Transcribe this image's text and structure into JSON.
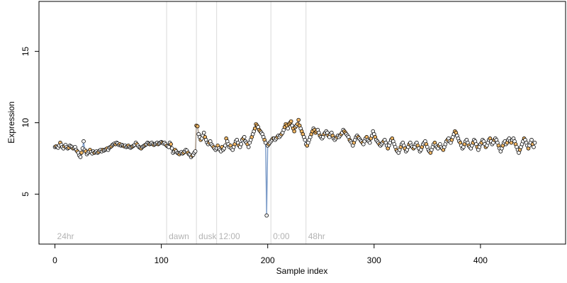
{
  "chart_data": {
    "type": "scatter",
    "title": "",
    "xlabel": "Sample index",
    "ylabel": "Expression",
    "xlim": [
      -15,
      480
    ],
    "ylim": [
      1.5,
      18.5
    ],
    "x_ticks": [
      0,
      100,
      200,
      300,
      400
    ],
    "y_ticks": [
      5,
      10,
      15
    ],
    "grid": false,
    "legend": null,
    "colors": {
      "point_fill_default": "#ffffff",
      "point_fill_highlight": "#f5b967",
      "point_stroke": "#000000",
      "line_primary": "#7b9bc8",
      "line_secondary": "#f0a040",
      "divider": "#d9d9d9",
      "phase_label": "#b3b3b3"
    },
    "phase_dividers": [
      {
        "x": 105,
        "label": "dawn"
      },
      {
        "x": 133,
        "label": "dusk"
      },
      {
        "x": 152,
        "label": "12:00"
      },
      {
        "x": 203,
        "label": "0:00"
      },
      {
        "x": 236,
        "label": "48hr"
      }
    ],
    "start_label": "24hr",
    "series": [
      {
        "values": [
          8.3,
          8.35,
          8.3,
          8.25,
          8.4,
          8.6,
          8.45,
          8.3,
          8.2,
          8.35,
          8.45,
          8.3,
          8.2,
          8.25,
          8.4,
          8.35,
          8.3,
          8.2,
          8.25,
          8.3,
          8.1,
          8.0,
          7.9,
          7.7,
          7.6,
          7.9,
          8.2,
          8.7,
          8.1,
          8.0,
          7.8,
          7.9,
          8.0,
          8.1,
          7.95,
          7.85,
          8.0,
          7.9,
          7.95,
          8.0,
          7.9,
          7.95,
          8.05,
          8.1,
          8.0,
          8.1,
          8.05,
          8.1,
          8.15,
          8.2,
          8.1,
          8.25,
          8.3,
          8.35,
          8.45,
          8.5,
          8.55,
          8.5,
          8.6,
          8.55,
          8.45,
          8.5,
          8.4,
          8.45,
          8.4,
          8.35,
          8.4,
          8.3,
          8.35,
          8.4,
          8.3,
          8.25,
          8.3,
          8.35,
          8.4,
          8.45,
          8.6,
          8.5,
          8.4,
          8.3,
          8.25,
          8.2,
          8.3,
          8.35,
          8.4,
          8.45,
          8.5,
          8.6,
          8.55,
          8.5,
          8.55,
          8.6,
          8.5,
          8.45,
          8.5,
          8.55,
          8.6,
          8.5,
          8.55,
          8.6,
          8.65,
          8.6,
          8.55,
          8.6,
          8.5,
          8.4,
          8.35,
          8.3,
          8.6,
          8.5,
          8.2,
          7.9,
          8.0,
          8.1,
          8.0,
          7.9,
          7.85,
          7.8,
          7.9,
          7.95,
          7.85,
          7.9,
          8.0,
          8.1,
          8.05,
          7.9,
          7.8,
          7.75,
          7.6,
          7.7,
          7.75,
          7.9,
          8.0,
          9.8,
          9.75,
          9.2,
          9.0,
          8.8,
          8.9,
          9.1,
          9.3,
          9.0,
          8.8,
          8.6,
          8.5,
          8.6,
          8.7,
          8.5,
          8.4,
          8.3,
          8.2,
          8.1,
          8.2,
          8.4,
          8.2,
          8.1,
          8.0,
          8.3,
          8.1,
          8.2,
          8.4,
          8.9,
          8.7,
          8.5,
          8.3,
          8.4,
          8.2,
          8.1,
          8.3,
          8.5,
          8.7,
          8.8,
          8.6,
          8.4,
          8.3,
          8.5,
          8.8,
          8.9,
          9.0,
          8.7,
          8.6,
          8.5,
          8.3,
          8.6,
          8.8,
          9.0,
          9.2,
          9.4,
          9.6,
          9.9,
          9.8,
          9.7,
          9.5,
          9.4,
          9.3,
          9.2,
          9.0,
          8.8,
          8.6,
          3.5,
          8.4,
          8.5,
          8.6,
          8.7,
          8.8,
          8.9,
          8.9,
          8.8,
          8.9,
          9.0,
          9.1,
          9.0,
          9.1,
          9.2,
          9.3,
          9.5,
          9.7,
          9.9,
          9.8,
          9.6,
          9.9,
          10.0,
          10.1,
          9.8,
          9.6,
          9.4,
          9.7,
          9.8,
          9.9,
          10.2,
          9.8,
          9.6,
          9.4,
          9.2,
          9.0,
          8.8,
          8.5,
          8.4,
          8.6,
          8.8,
          9.0,
          9.2,
          9.4,
          9.6,
          9.5,
          9.3,
          9.4,
          9.5,
          9.3,
          9.1,
          9.0,
          8.9,
          9.0,
          9.2,
          9.3,
          9.4,
          9.3,
          9.1,
          9.0,
          9.2,
          9.3,
          9.1,
          8.9,
          8.8,
          8.9,
          9.0,
          9.1,
          9.0,
          9.1,
          9.2,
          9.3,
          9.5,
          9.4,
          9.3,
          9.2,
          9.1,
          9.0,
          8.8,
          8.7,
          8.6,
          8.4,
          8.6,
          8.8,
          9.0,
          9.1,
          9.0,
          8.9,
          8.8,
          8.7,
          8.6,
          8.5,
          8.7,
          8.9,
          9.0,
          8.8,
          8.7,
          8.6,
          8.9,
          9.1,
          9.4,
          9.2,
          9.0,
          8.8,
          8.7,
          8.6,
          8.5,
          8.4,
          8.5,
          8.6,
          8.7,
          8.8,
          8.6,
          8.4,
          8.2,
          8.4,
          8.6,
          8.8,
          8.9,
          8.7,
          8.5,
          8.3,
          8.1,
          8.0,
          7.9,
          8.1,
          8.3,
          8.5,
          8.6,
          8.4,
          8.2,
          8.0,
          8.1,
          8.3,
          8.5,
          8.6,
          8.4,
          8.3,
          8.2,
          8.3,
          8.5,
          8.6,
          8.4,
          8.2,
          8.0,
          8.1,
          8.3,
          8.5,
          8.6,
          8.7,
          8.5,
          8.3,
          8.1,
          8.0,
          7.9,
          8.1,
          8.3,
          8.5,
          8.6,
          8.4,
          8.3,
          8.2,
          8.4,
          8.5,
          8.3,
          8.2,
          8.1,
          8.3,
          8.5,
          8.7,
          8.8,
          8.9,
          8.7,
          8.6,
          8.8,
          9.0,
          9.2,
          9.4,
          9.3,
          9.1,
          8.9,
          8.7,
          8.6,
          8.4,
          8.2,
          8.3,
          8.5,
          8.7,
          8.8,
          8.6,
          8.4,
          8.3,
          8.2,
          8.4,
          8.6,
          8.8,
          8.7,
          8.5,
          8.3,
          8.1,
          8.3,
          8.5,
          8.6,
          8.8,
          8.7,
          8.5,
          8.3,
          8.4,
          8.6,
          8.8,
          8.9,
          8.7,
          8.5,
          8.6,
          8.8,
          8.9,
          8.8,
          8.6,
          8.4,
          8.2,
          8.0,
          8.2,
          8.4,
          8.6,
          8.7,
          8.5,
          8.6,
          8.8,
          8.9,
          8.7,
          8.6,
          8.8,
          8.9,
          8.7,
          8.5,
          8.3,
          8.1,
          7.9,
          8.1,
          8.3,
          8.5,
          8.7,
          8.9,
          8.8,
          8.6,
          8.4,
          8.2,
          8.4,
          8.6,
          8.8,
          8.5,
          8.3,
          8.6
        ]
      }
    ]
  }
}
